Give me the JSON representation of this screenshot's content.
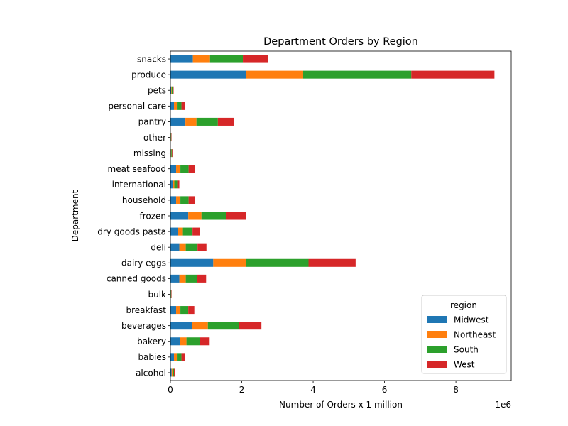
{
  "chart_data": {
    "type": "bar",
    "orientation": "horizontal",
    "stacked": true,
    "title": "Department Orders by Region",
    "xlabel": "Number of Orders x 1 million",
    "ylabel": "Department",
    "x_offset_label": "1e6",
    "xlim": [
      0,
      9550000
    ],
    "xticks": [
      0,
      2000000,
      4000000,
      6000000,
      8000000
    ],
    "xtick_labels": [
      "0",
      "2",
      "4",
      "6",
      "8"
    ],
    "grid": false,
    "legend": {
      "title": "region",
      "location": "lower-right"
    },
    "categories": [
      "alcohol",
      "babies",
      "bakery",
      "beverages",
      "breakfast",
      "bulk",
      "canned goods",
      "dairy eggs",
      "deli",
      "dry goods pasta",
      "frozen",
      "household",
      "international",
      "meat seafood",
      "missing",
      "other",
      "pantry",
      "personal care",
      "pets",
      "produce",
      "snacks"
    ],
    "series": [
      {
        "name": "Midwest",
        "color": "#1f77b4",
        "values": [
          35000,
          100000,
          260000,
          600000,
          160000,
          8000,
          250000,
          1200000,
          250000,
          200000,
          500000,
          160000,
          60000,
          160000,
          15000,
          8000,
          420000,
          100000,
          20000,
          2120000,
          630000
        ]
      },
      {
        "name": "Northeast",
        "color": "#ff7f0e",
        "values": [
          25000,
          80000,
          190000,
          450000,
          120000,
          6000,
          180000,
          920000,
          180000,
          150000,
          370000,
          120000,
          50000,
          120000,
          10000,
          7000,
          310000,
          80000,
          15000,
          1600000,
          480000
        ]
      },
      {
        "name": "South",
        "color": "#2ca02c",
        "values": [
          40000,
          130000,
          370000,
          870000,
          220000,
          11000,
          320000,
          1750000,
          330000,
          270000,
          700000,
          230000,
          80000,
          230000,
          20000,
          10000,
          600000,
          130000,
          30000,
          3030000,
          920000
        ]
      },
      {
        "name": "West",
        "color": "#d62728",
        "values": [
          30000,
          100000,
          280000,
          630000,
          170000,
          9000,
          250000,
          1320000,
          250000,
          200000,
          550000,
          170000,
          60000,
          170000,
          15000,
          8000,
          450000,
          100000,
          25000,
          2330000,
          710000
        ]
      }
    ]
  }
}
